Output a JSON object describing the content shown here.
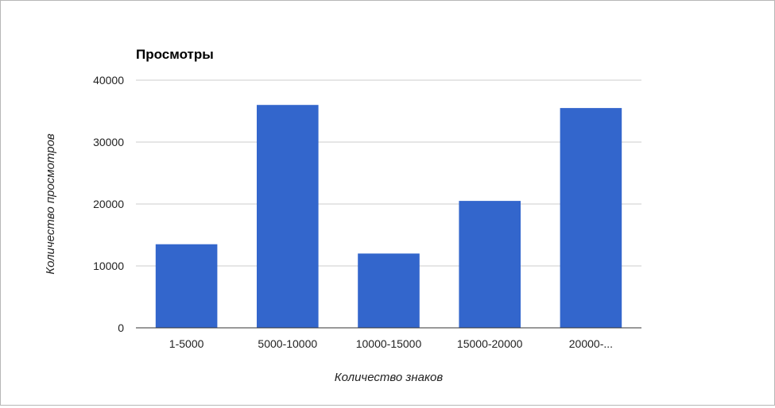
{
  "chart_data": {
    "type": "bar",
    "title": "Просмотры",
    "xlabel": "Количество знаков",
    "ylabel": "Количество просмотров",
    "categories": [
      "1-5000",
      "5000-10000",
      "10000-15000",
      "15000-20000",
      "20000-..."
    ],
    "values": [
      13500,
      36000,
      12000,
      20500,
      35500
    ],
    "ylim": [
      0,
      40000
    ],
    "yticks": [
      "0",
      "10000",
      "20000",
      "30000",
      "40000"
    ],
    "grid": true,
    "legend": "none",
    "bar_color": "#3366cc",
    "grid_color": "#cccccc",
    "axis_color": "#333333"
  }
}
